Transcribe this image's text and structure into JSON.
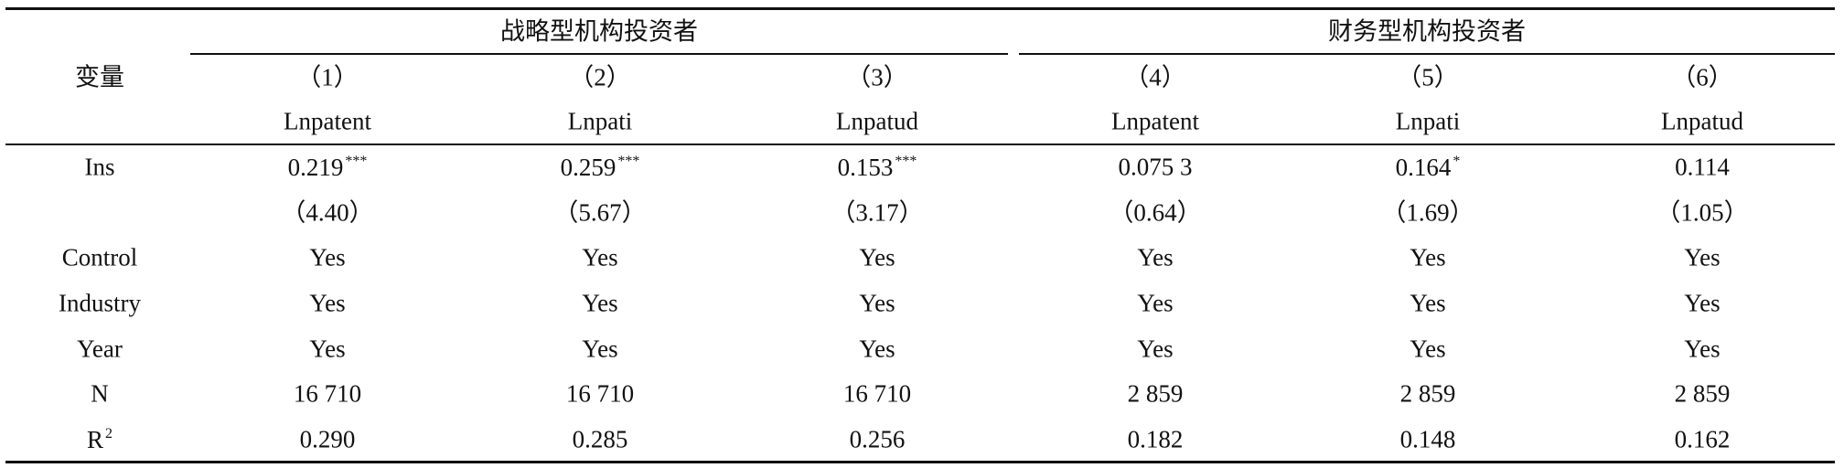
{
  "table": {
    "corner": "变量",
    "groups": [
      "战略型机构投资者",
      "财务型机构投资者"
    ],
    "column_numbers": [
      "（1）",
      "（2）",
      "（3）",
      "（4）",
      "（5）",
      "（6）"
    ],
    "dependent_variables": [
      "Lnpatent",
      "Lnpati",
      "Lnpatud",
      "Lnpatent",
      "Lnpati",
      "Lnpatud"
    ],
    "rows": [
      {
        "label": "Ins",
        "cells": [
          {
            "text": "0.219",
            "sup": "***"
          },
          {
            "text": "0.259",
            "sup": "***"
          },
          {
            "text": "0.153",
            "sup": "***"
          },
          {
            "text": "0.075 3"
          },
          {
            "text": "0.164",
            "sup": "*"
          },
          {
            "text": "0.114"
          }
        ]
      },
      {
        "cells": [
          {
            "text": "（4.40）"
          },
          {
            "text": "（5.67）"
          },
          {
            "text": "（3.17）"
          },
          {
            "text": "（0.64）"
          },
          {
            "text": "（1.69）"
          },
          {
            "text": "（1.05）"
          }
        ]
      },
      {
        "label": "Control",
        "cells": [
          {
            "text": "Yes"
          },
          {
            "text": "Yes"
          },
          {
            "text": "Yes"
          },
          {
            "text": "Yes"
          },
          {
            "text": "Yes"
          },
          {
            "text": "Yes"
          }
        ]
      },
      {
        "label": "Industry",
        "cells": [
          {
            "text": "Yes"
          },
          {
            "text": "Yes"
          },
          {
            "text": "Yes"
          },
          {
            "text": "Yes"
          },
          {
            "text": "Yes"
          },
          {
            "text": "Yes"
          }
        ]
      },
      {
        "label": "Year",
        "cells": [
          {
            "text": "Yes"
          },
          {
            "text": "Yes"
          },
          {
            "text": "Yes"
          },
          {
            "text": "Yes"
          },
          {
            "text": "Yes"
          },
          {
            "text": "Yes"
          }
        ]
      },
      {
        "label": "N",
        "cells": [
          {
            "text": "16 710"
          },
          {
            "text": "16 710"
          },
          {
            "text": "16 710"
          },
          {
            "text": "2 859"
          },
          {
            "text": "2 859"
          },
          {
            "text": "2 859"
          }
        ]
      },
      {
        "label": {
          "text": "R",
          "sup": "2"
        },
        "cells": [
          {
            "text": "0.290"
          },
          {
            "text": "0.285"
          },
          {
            "text": "0.256"
          },
          {
            "text": "0.182"
          },
          {
            "text": "0.148"
          },
          {
            "text": "0.162"
          }
        ]
      }
    ]
  }
}
